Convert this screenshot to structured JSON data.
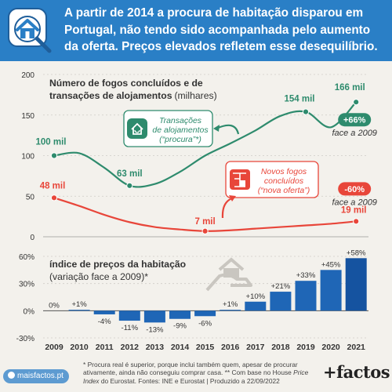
{
  "header": {
    "title": "A partir de 2014 a procura de habitação disparou em Portugal, não tendo sido acompanhada pelo aumento da oferta. Preços elevados refletem esse desequilíbrio.",
    "icon": "house-search-icon"
  },
  "chart_data": [
    {
      "type": "line",
      "title": "Número de fogos concluídos e de transações de alojamentos",
      "title_unit": "(milhares)",
      "x": [
        2009,
        2010,
        2011,
        2012,
        2013,
        2014,
        2015,
        2016,
        2017,
        2018,
        2019,
        2020,
        2021
      ],
      "ylim": [
        0,
        200
      ],
      "yticks": [
        0,
        50,
        100,
        150,
        200
      ],
      "grid": true,
      "series": [
        {
          "name": "Transações de alojamentos (“procura”*)",
          "color": "#2e8b6d",
          "values": [
            100,
            103,
            85,
            63,
            65,
            80,
            100,
            115,
            131,
            149,
            154,
            135,
            166
          ],
          "point_labels": [
            {
              "x": 2009,
              "label": "100 mil"
            },
            {
              "x": 2012,
              "label": "63 mil"
            },
            {
              "x": 2019,
              "label": "154 mil"
            },
            {
              "x": 2021,
              "label": "166 mil"
            }
          ],
          "change_badge": "+66%",
          "change_note": "face a 2009"
        },
        {
          "name": "Novos fogos concluídos (“nova oferta”)",
          "color": "#e8463a",
          "values": [
            48,
            38,
            27,
            18,
            12,
            9,
            7,
            8,
            10,
            12,
            14,
            16,
            19
          ],
          "point_labels": [
            {
              "x": 2009,
              "label": "48 mil"
            },
            {
              "x": 2015,
              "label": "7 mil"
            },
            {
              "x": 2021,
              "label": "19 mil"
            }
          ],
          "change_badge": "-60%",
          "change_note": "face a 2009"
        }
      ]
    },
    {
      "type": "bar",
      "title": "índice de preços da habitação",
      "subtitle": "(variação face a 2009)*",
      "categories": [
        2009,
        2010,
        2011,
        2012,
        2013,
        2014,
        2015,
        2016,
        2017,
        2018,
        2019,
        2020,
        2021
      ],
      "values": [
        0,
        1,
        -4,
        -11,
        -13,
        -9,
        -6,
        1,
        10,
        21,
        33,
        45,
        58
      ],
      "labels": [
        "0%",
        "+1%",
        "-4%",
        "-11%",
        "-13%",
        "-9%",
        "-6%",
        "+1%",
        "+10%",
        "+21%",
        "+33%",
        "+45%",
        "+58%"
      ],
      "ylim": [
        -30,
        60
      ],
      "yticks": [
        -30,
        0,
        30,
        60
      ],
      "ytick_labels": [
        "-30%",
        "0%",
        "30%",
        "60%"
      ],
      "colors": {
        "bar": "#1f66b6",
        "last_bar": "#1553a0"
      }
    }
  ],
  "footer": {
    "site": "maisfactos.pt",
    "note_1": "* Procura real é superior, porque inclui também quem, apesar de procurar ativamente, ainda não conseguiu comprar casa. ** Com base no House",
    "note_2": "Price Index",
    "note_3": " do Eurostat. Fontes: INE e Eurostat | Produzido a 22/09/2022",
    "brand": "+factos"
  }
}
